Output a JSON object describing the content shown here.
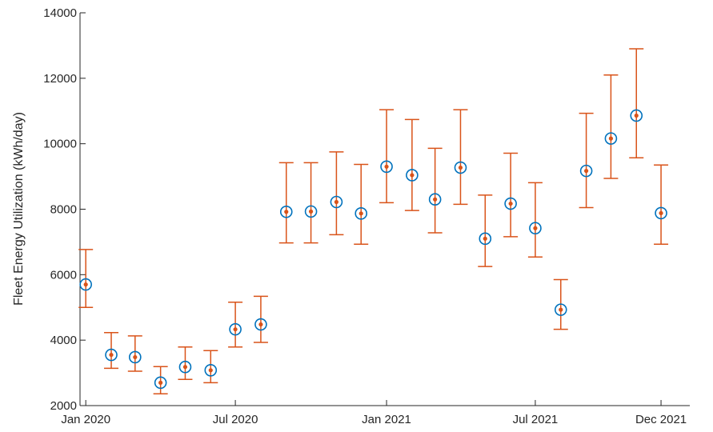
{
  "chart_data": {
    "type": "scatter",
    "title": "",
    "xlabel": "",
    "ylabel": "Fleet Energy Utilization (kWh/day)",
    "ylim": [
      2000,
      14000
    ],
    "yticks": [
      2000,
      4000,
      6000,
      8000,
      10000,
      12000,
      14000
    ],
    "yticklabels": [
      "2000",
      "4000",
      "6000",
      "8000",
      "10000",
      "12000",
      "14000"
    ],
    "xlim": [
      "2019-12-25",
      "2022-01-05"
    ],
    "xticks": [
      "2020-01-01",
      "2020-07-01",
      "2021-01-01",
      "2021-07-01",
      "2021-12-01"
    ],
    "xticklabels": [
      "Jan 2020",
      "Jul 2020",
      "Jan 2021",
      "Jul 2021",
      "Dec 2021"
    ],
    "grid": false,
    "colors": {
      "marker": "#0072BD",
      "errorbar": "#D95319",
      "axis": "#262626"
    },
    "series": [
      {
        "x": [
          "2020-01-01",
          "2020-02-01",
          "2020-03-01",
          "2020-04-01",
          "2020-05-01",
          "2020-06-01",
          "2020-07-01",
          "2020-08-01",
          "2020-09-01",
          "2020-10-01",
          "2020-11-01",
          "2020-12-01",
          "2021-01-01",
          "2021-02-01",
          "2021-03-01",
          "2021-04-01",
          "2021-05-01",
          "2021-06-01",
          "2021-07-01",
          "2021-08-01",
          "2021-09-01",
          "2021-10-01",
          "2021-11-01",
          "2021-12-01"
        ],
        "values": [
          5700,
          3550,
          3480,
          2700,
          3180,
          3080,
          4330,
          4480,
          7920,
          7930,
          8220,
          7870,
          9300,
          9040,
          8300,
          9270,
          7100,
          8170,
          7420,
          4930,
          9170,
          10160,
          10860,
          7880
        ],
        "error_low": [
          5000,
          3140,
          3050,
          2360,
          2800,
          2700,
          3790,
          3930,
          6970,
          6970,
          7220,
          6930,
          8200,
          7960,
          7280,
          8150,
          6250,
          7160,
          6540,
          4330,
          8050,
          8940,
          9570,
          6930
        ],
        "error_high": [
          6770,
          4230,
          4130,
          3190,
          3790,
          3680,
          5160,
          5340,
          9420,
          9420,
          9750,
          9370,
          11040,
          10740,
          9860,
          11040,
          8430,
          9710,
          8810,
          5850,
          10930,
          12100,
          12900,
          9350
        ]
      }
    ]
  }
}
